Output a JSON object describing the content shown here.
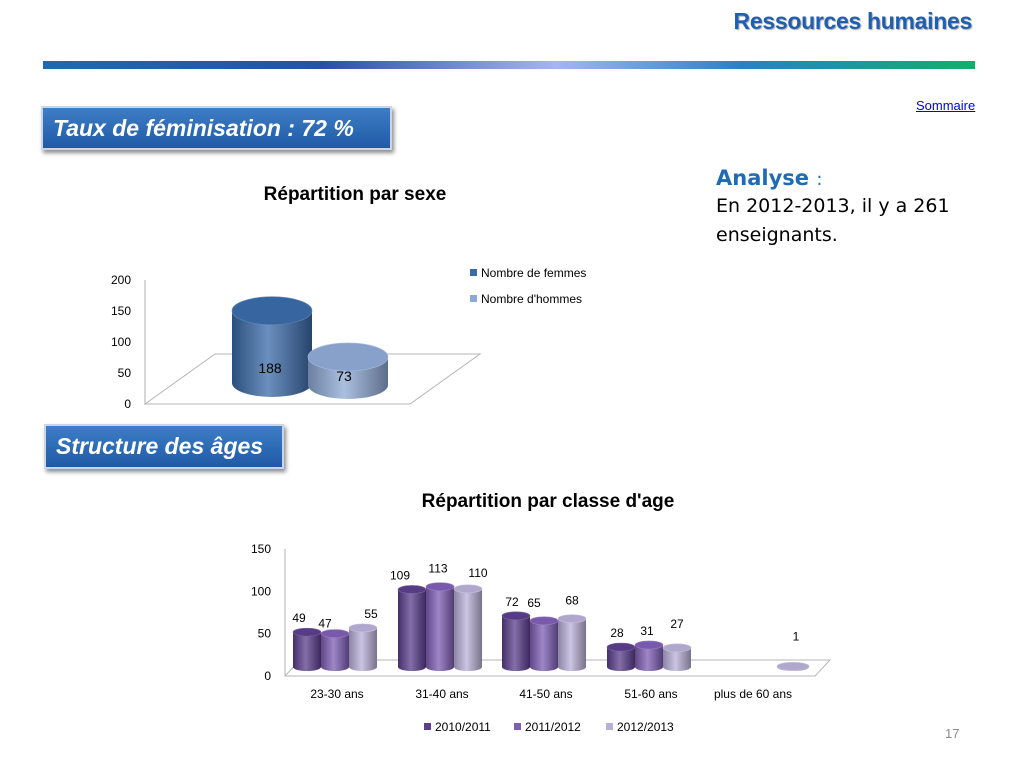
{
  "header": {
    "title": "Ressources humaines"
  },
  "nav": {
    "sommaire": "Sommaire"
  },
  "sections": {
    "feminisation": "Taux de féminisation : 72 %",
    "ages": "Structure des âges"
  },
  "analysis": {
    "heading": "Analyse",
    "colon": ":",
    "text": "En 2012-2013, il y a 261 enseignants."
  },
  "page_number": "17",
  "colors": {
    "accent": "#1f5fb0",
    "femmes": "#3a6aa8",
    "hommes": "#8fa9d6",
    "y2010": "#5b3e8c",
    "y2011": "#7e5eb4",
    "y2012": "#b9b0d8"
  },
  "chart_data": [
    {
      "type": "bar",
      "title": "Répartition par sexe",
      "categories": [
        ""
      ],
      "series": [
        {
          "name": "Nombre de femmes",
          "values": [
            188
          ]
        },
        {
          "name": "Nombre d'hommes",
          "values": [
            73
          ]
        }
      ],
      "ylim": [
        0,
        200
      ],
      "yticks": [
        0,
        50,
        100,
        150,
        200
      ],
      "data_labels": [
        "188",
        "73"
      ],
      "legend": "right",
      "style": "3d-cylinder"
    },
    {
      "type": "bar",
      "title": "Répartition par classe d'age",
      "categories": [
        "23-30 ans",
        "31-40 ans",
        "41-50 ans",
        "51-60 ans",
        "plus de 60 ans"
      ],
      "series": [
        {
          "name": "2010/2011",
          "values": [
            49,
            109,
            72,
            28,
            0
          ]
        },
        {
          "name": "2011/2012",
          "values": [
            47,
            113,
            65,
            31,
            0
          ]
        },
        {
          "name": "2012/2013",
          "values": [
            55,
            110,
            68,
            27,
            1
          ]
        }
      ],
      "data_labels": [
        [
          "49",
          "109",
          "72",
          "28",
          ""
        ],
        [
          "47",
          "113",
          "65",
          "31",
          ""
        ],
        [
          "55",
          "110",
          "68",
          "27",
          "1"
        ]
      ],
      "ylim": [
        0,
        150
      ],
      "yticks": [
        0,
        50,
        100,
        150
      ],
      "legend": "bottom",
      "style": "3d-cylinder"
    }
  ]
}
